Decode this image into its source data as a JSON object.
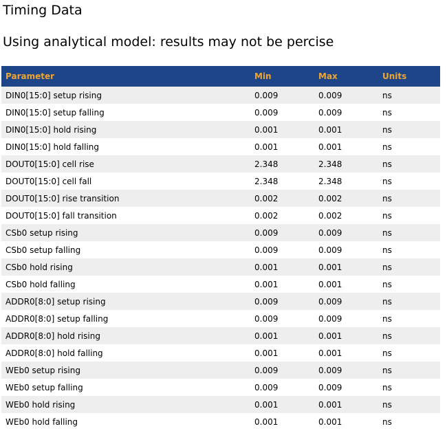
{
  "header": {
    "title": "Timing Data",
    "subtitle": "Using analytical model: results may not be percise"
  },
  "table": {
    "columns": [
      "Parameter",
      "Min",
      "Max",
      "Units"
    ],
    "rows": [
      [
        "DIN0[15:0] setup rising",
        "0.009",
        "0.009",
        "ns"
      ],
      [
        "DIN0[15:0] setup falling",
        "0.009",
        "0.009",
        "ns"
      ],
      [
        "DIN0[15:0] hold rising",
        "0.001",
        "0.001",
        "ns"
      ],
      [
        "DIN0[15:0] hold falling",
        "0.001",
        "0.001",
        "ns"
      ],
      [
        "DOUT0[15:0] cell rise",
        "2.348",
        "2.348",
        "ns"
      ],
      [
        "DOUT0[15:0] cell fall",
        "2.348",
        "2.348",
        "ns"
      ],
      [
        "DOUT0[15:0] rise transition",
        "0.002",
        "0.002",
        "ns"
      ],
      [
        "DOUT0[15:0] fall transition",
        "0.002",
        "0.002",
        "ns"
      ],
      [
        "CSb0 setup rising",
        "0.009",
        "0.009",
        "ns"
      ],
      [
        "CSb0 setup falling",
        "0.009",
        "0.009",
        "ns"
      ],
      [
        "CSb0 hold rising",
        "0.001",
        "0.001",
        "ns"
      ],
      [
        "CSb0 hold falling",
        "0.001",
        "0.001",
        "ns"
      ],
      [
        "ADDR0[8:0] setup rising",
        "0.009",
        "0.009",
        "ns"
      ],
      [
        "ADDR0[8:0] setup falling",
        "0.009",
        "0.009",
        "ns"
      ],
      [
        "ADDR0[8:0] hold rising",
        "0.001",
        "0.001",
        "ns"
      ],
      [
        "ADDR0[8:0] hold falling",
        "0.001",
        "0.001",
        "ns"
      ],
      [
        "WEb0 setup rising",
        "0.009",
        "0.009",
        "ns"
      ],
      [
        "WEb0 setup falling",
        "0.009",
        "0.009",
        "ns"
      ],
      [
        "WEb0 hold rising",
        "0.001",
        "0.001",
        "ns"
      ],
      [
        "WEb0 hold falling",
        "0.001",
        "0.001",
        "ns"
      ]
    ]
  }
}
